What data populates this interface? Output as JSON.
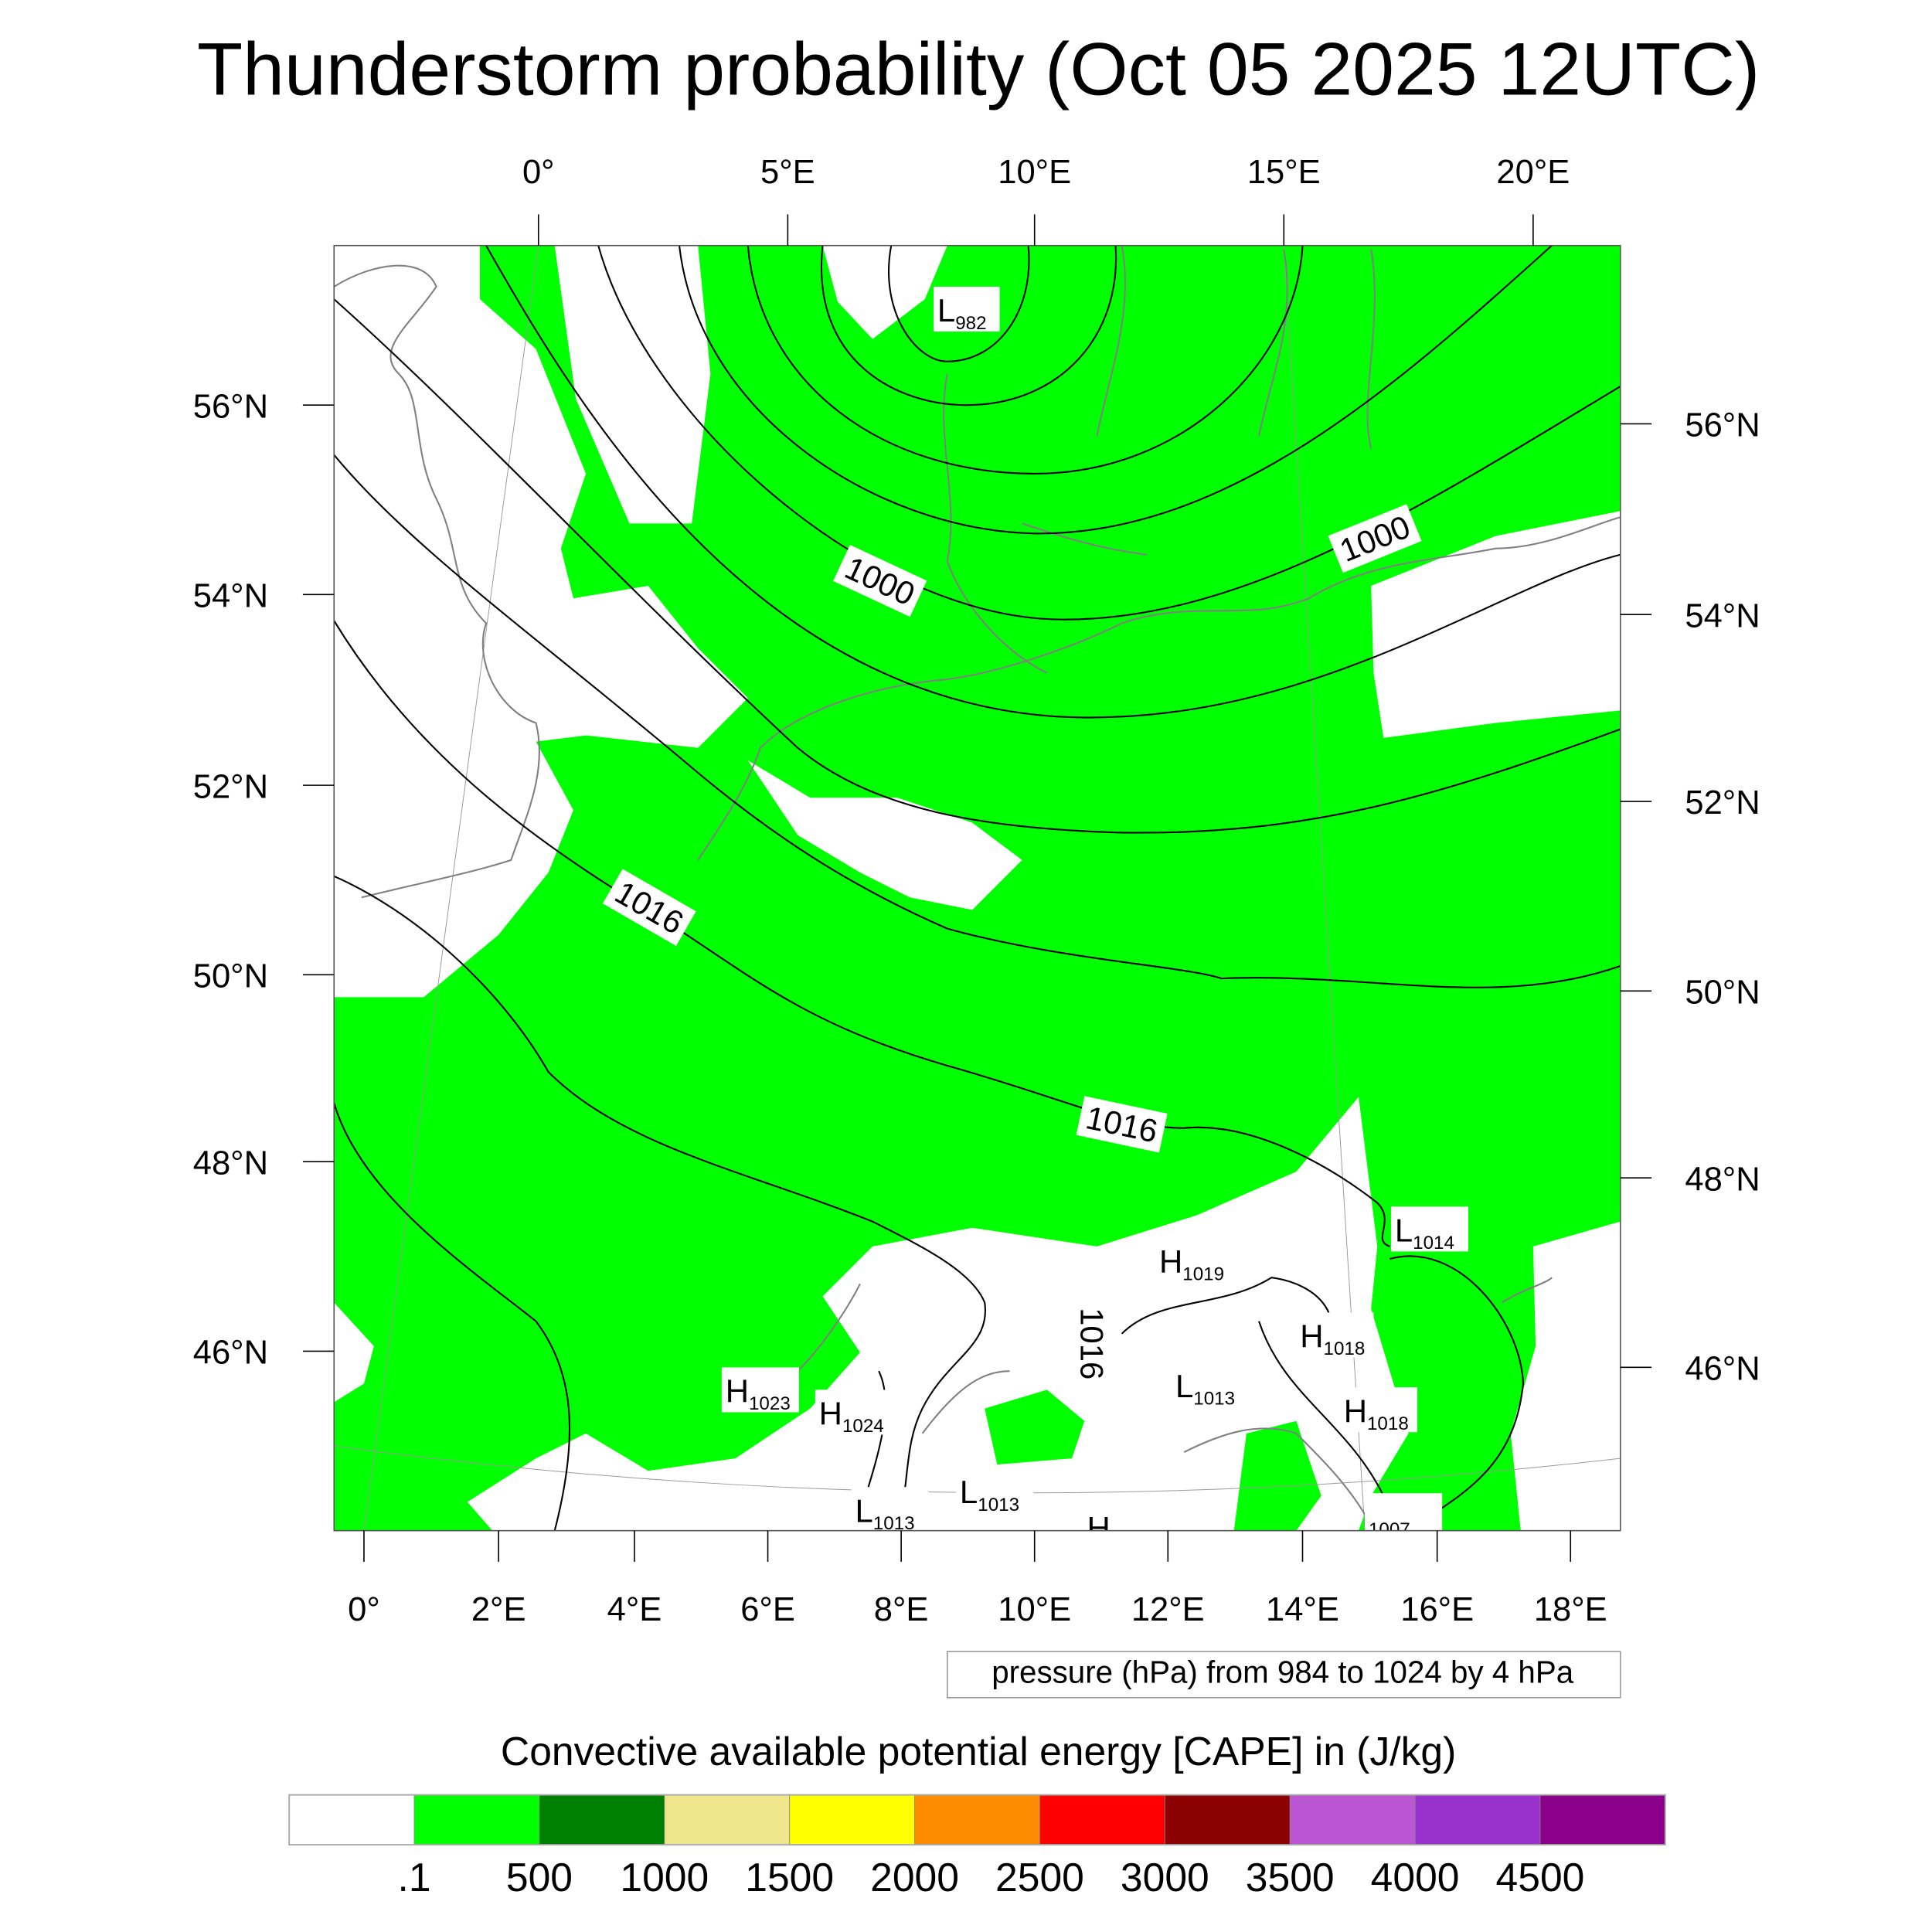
{
  "title": "Thunderstorm probability (Oct 05 2025 12UTC)",
  "axes": {
    "top_lon_labels": [
      "0°",
      "5°E",
      "10°E",
      "15°E",
      "20°E"
    ],
    "bottom_lon_labels": [
      "0°",
      "2°E",
      "4°E",
      "6°E",
      "8°E",
      "10°E",
      "12°E",
      "14°E",
      "16°E",
      "18°E"
    ],
    "left_lat_labels": [
      "56°N",
      "54°N",
      "52°N",
      "50°N",
      "48°N",
      "46°N"
    ],
    "right_lat_labels": [
      "56°N",
      "54°N",
      "52°N",
      "50°N",
      "48°N",
      "46°N"
    ]
  },
  "contour_labels": [
    "1000",
    "1000",
    "1016",
    "1016",
    "1016"
  ],
  "pressure_centers": [
    {
      "type": "L",
      "value": "982"
    },
    {
      "type": "H",
      "value": "1023"
    },
    {
      "type": "H",
      "value": "1024"
    },
    {
      "type": "L",
      "value": "1014"
    },
    {
      "type": "H",
      "value": "1019"
    },
    {
      "type": "H",
      "value": "1018"
    },
    {
      "type": "L",
      "value": "1013"
    },
    {
      "type": "H",
      "value": "1018"
    },
    {
      "type": "L",
      "value": "1013"
    },
    {
      "type": "L",
      "value": "1013"
    },
    {
      "type": "",
      "value": "1007"
    },
    {
      "type": "H",
      "value": ""
    }
  ],
  "contour_legend": "pressure (hPa) from 984 to 1024 by 4 hPa",
  "colorbar": {
    "title": "Convective available potential energy [CAPE] in (J/kg)",
    "colors": [
      "#ffffff",
      "#00ff00",
      "#008000",
      "#f0e68c",
      "#ffff00",
      "#ff8c00",
      "#ff0000",
      "#8b0000",
      "#ba55d3",
      "#9932cc",
      "#8b008b"
    ],
    "labels": [
      ".1",
      "500",
      "1000",
      "1500",
      "2000",
      "2500",
      "3000",
      "3500",
      "4000",
      "4500"
    ]
  },
  "colors": {
    "cape_fill": "#00ff00",
    "coastline": "#808080",
    "contour": "#000000"
  }
}
